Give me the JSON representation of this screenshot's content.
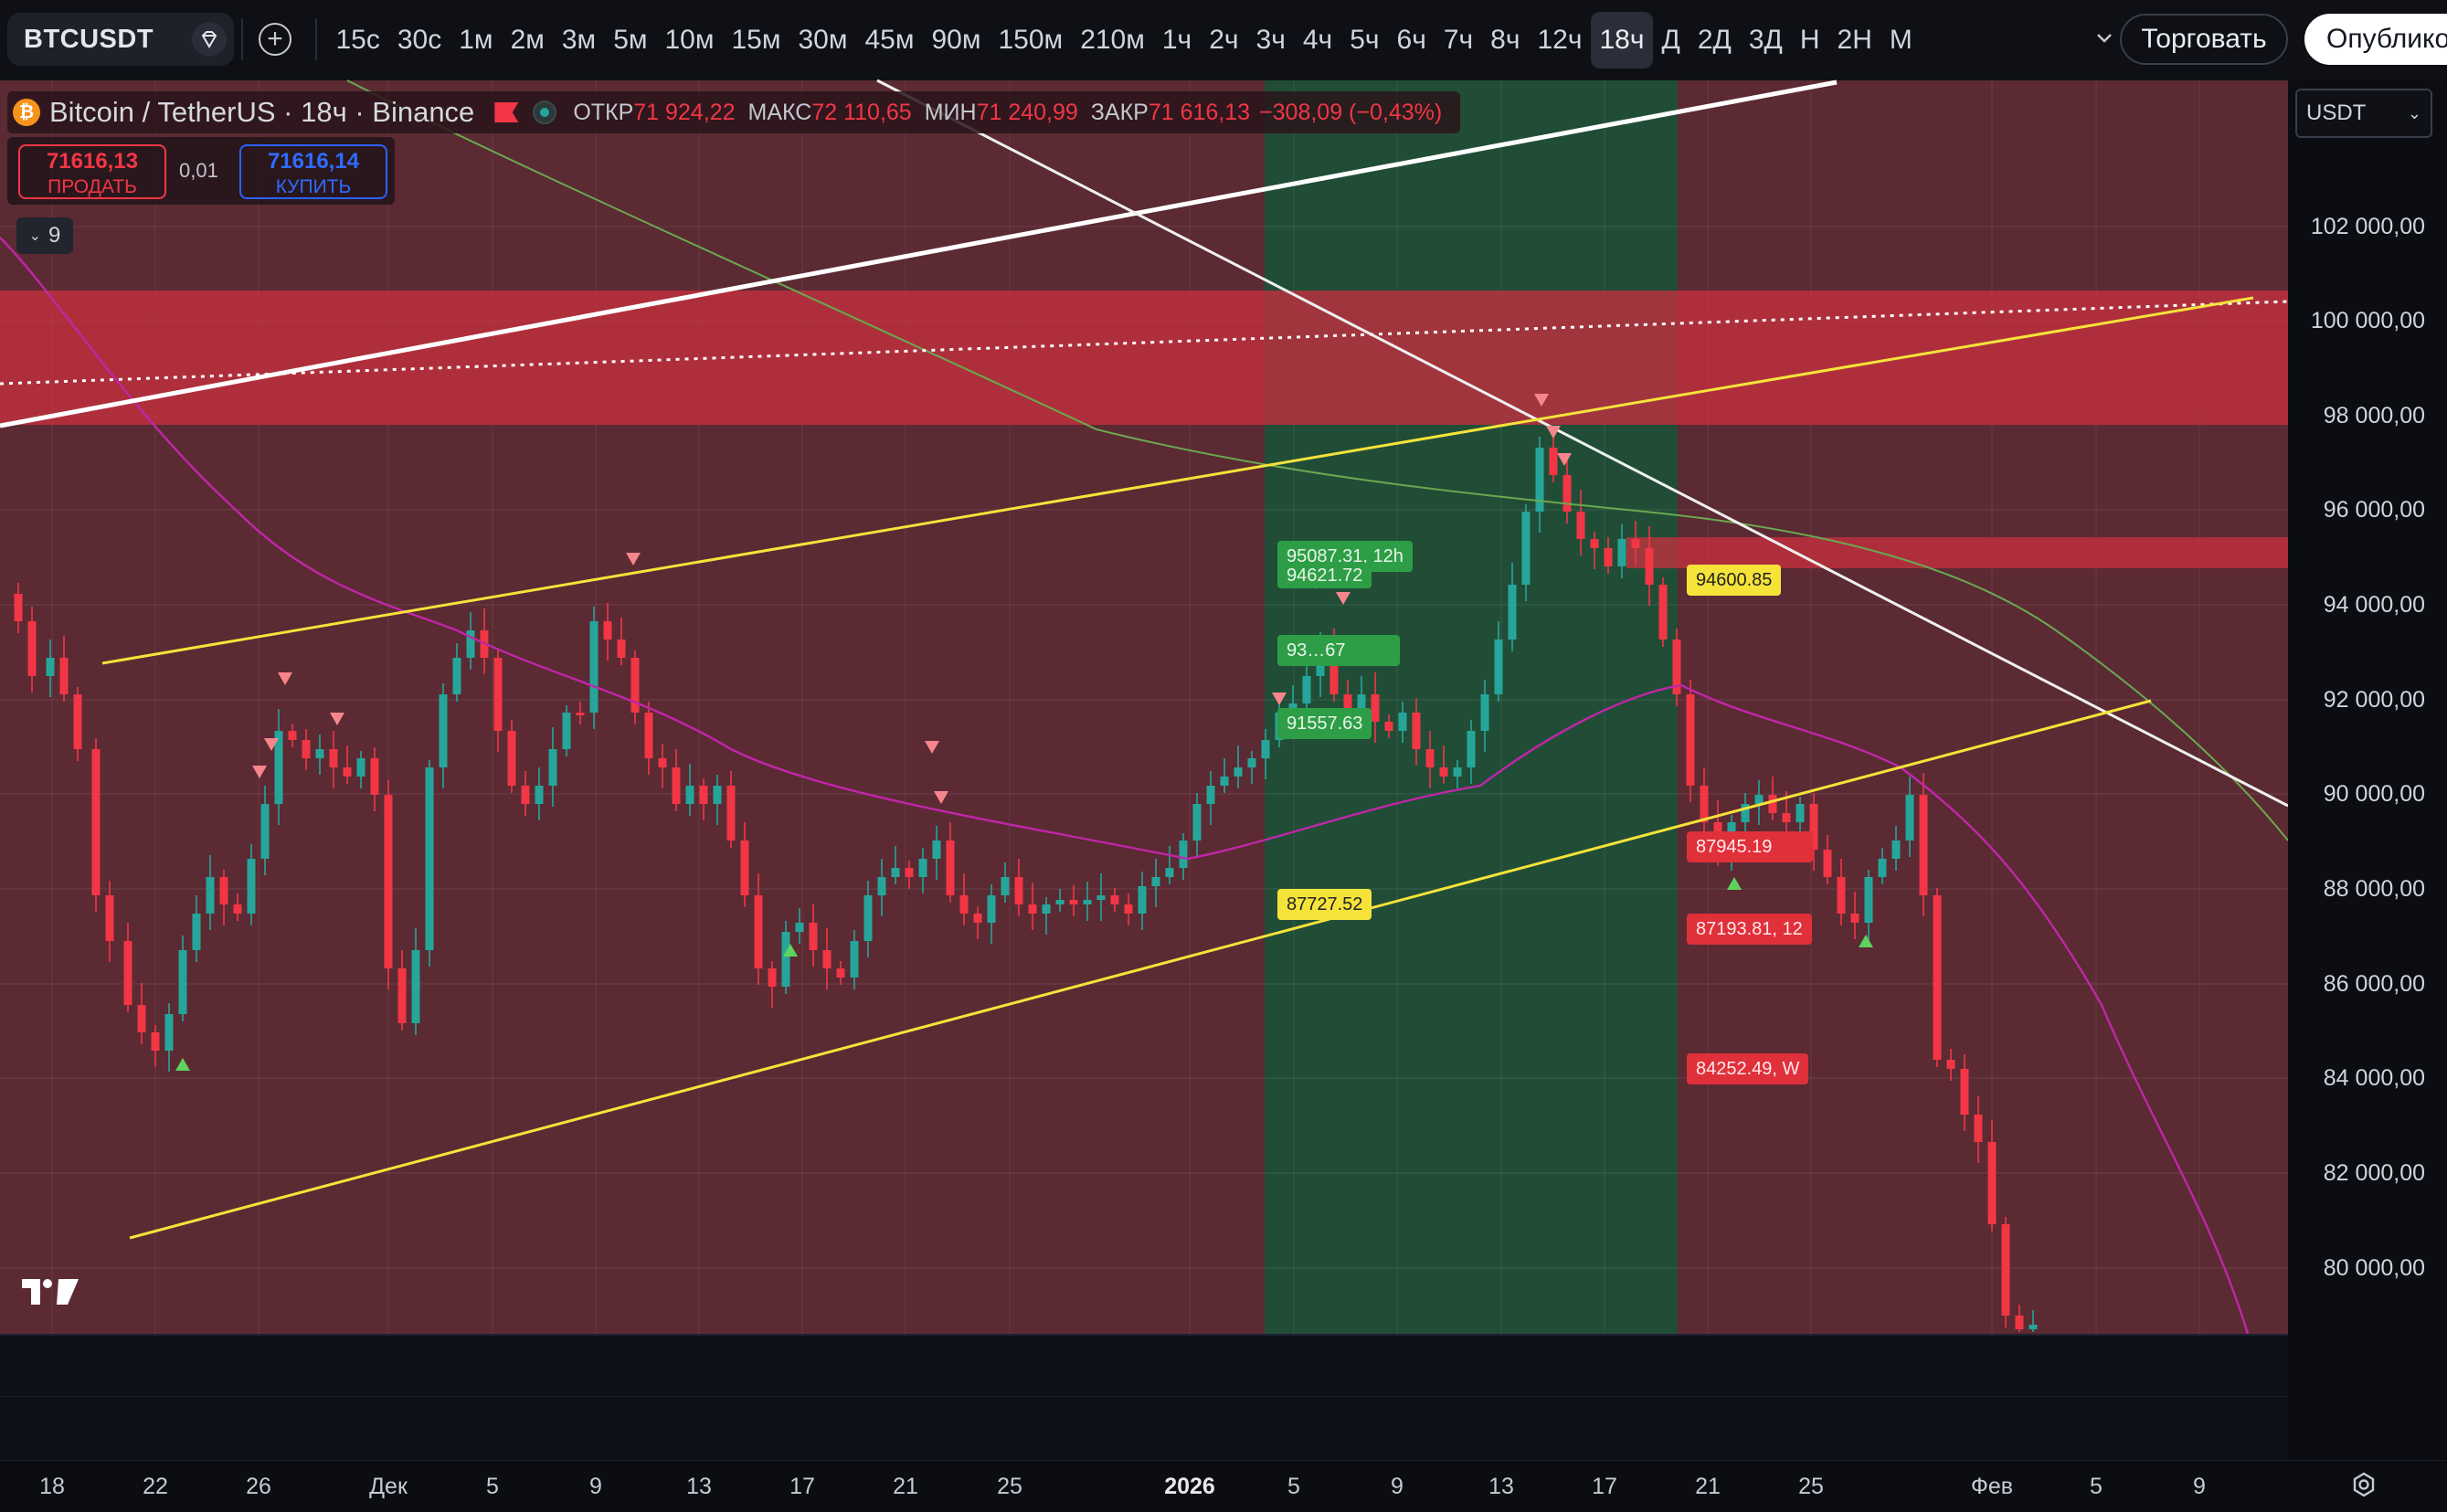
{
  "toolbar": {
    "symbol": "BTCUSDT",
    "intervals": [
      {
        "label": "15с"
      },
      {
        "label": "30с"
      },
      {
        "label": "1м"
      },
      {
        "label": "2м"
      },
      {
        "label": "3м"
      },
      {
        "label": "5м"
      },
      {
        "label": "10м"
      },
      {
        "label": "15м"
      },
      {
        "label": "30м"
      },
      {
        "label": "45м"
      },
      {
        "label": "90м"
      },
      {
        "label": "150м"
      },
      {
        "label": "210м"
      },
      {
        "label": "1ч"
      },
      {
        "label": "2ч"
      },
      {
        "label": "3ч"
      },
      {
        "label": "4ч"
      },
      {
        "label": "5ч"
      },
      {
        "label": "6ч"
      },
      {
        "label": "7ч"
      },
      {
        "label": "8ч"
      },
      {
        "label": "12ч"
      },
      {
        "label": "18ч",
        "active": true
      },
      {
        "label": "Д"
      },
      {
        "label": "2Д"
      },
      {
        "label": "3Д"
      },
      {
        "label": "Н"
      },
      {
        "label": "2Н"
      },
      {
        "label": "М"
      }
    ],
    "trade_label": "Торговать",
    "publish_label": "Опублико"
  },
  "legend": {
    "title": "Bitcoin / TetherUS · 18ч · Binance",
    "open_label": "ОТКР",
    "open": "71 924,22",
    "high_label": "МАКС",
    "high": "72 110,65",
    "low_label": "МИН",
    "low": "71 240,99",
    "close_label": "ЗАКР",
    "close": "71 616,13",
    "change": "−308,09 (−0,43%)",
    "collapse_count": "9"
  },
  "trade": {
    "sell_price": "71616,13",
    "sell_label": "ПРОДАТЬ",
    "spread": "0,01",
    "buy_price": "71616,14",
    "buy_label": "КУПИТЬ"
  },
  "currency": "USDT",
  "price_labels": [
    "102 000,00",
    "100 000,00",
    "98 000,00",
    "96 000,00",
    "94 000,00",
    "92 000,00",
    "90 000,00",
    "88 000,00",
    "86 000,00",
    "84 000,00",
    "82 000,00",
    "80 000,00"
  ],
  "time_labels": [
    {
      "label": "18"
    },
    {
      "label": "22"
    },
    {
      "label": "26"
    },
    {
      "label": "Дек"
    },
    {
      "label": "5"
    },
    {
      "label": "9"
    },
    {
      "label": "13"
    },
    {
      "label": "17"
    },
    {
      "label": "21"
    },
    {
      "label": "25"
    },
    {
      "label": "2026",
      "bold": true
    },
    {
      "label": "5"
    },
    {
      "label": "9"
    },
    {
      "label": "13"
    },
    {
      "label": "17"
    },
    {
      "label": "21"
    },
    {
      "label": "25"
    },
    {
      "label": "Фев"
    },
    {
      "label": "5"
    },
    {
      "label": "9"
    }
  ],
  "tags": [
    {
      "text": "95087.31, 12h",
      "color": "g"
    },
    {
      "text": "94621.72",
      "color": "g"
    },
    {
      "text": "93…67",
      "color": "g"
    },
    {
      "text": "91557.63",
      "color": "g"
    },
    {
      "text": "87727.52",
      "color": "y"
    },
    {
      "text": "94600.85",
      "color": "y"
    },
    {
      "text": "87945.19",
      "color": "r"
    },
    {
      "text": "87193.81, 12",
      "color": "r"
    },
    {
      "text": "84252.49, W",
      "color": "r"
    }
  ],
  "colors": {
    "up": "#26a69a",
    "down": "#f23645",
    "zone_red": "#d32f3f",
    "zone_green": "#1b5e3b",
    "yellow": "#f5e33a"
  }
}
